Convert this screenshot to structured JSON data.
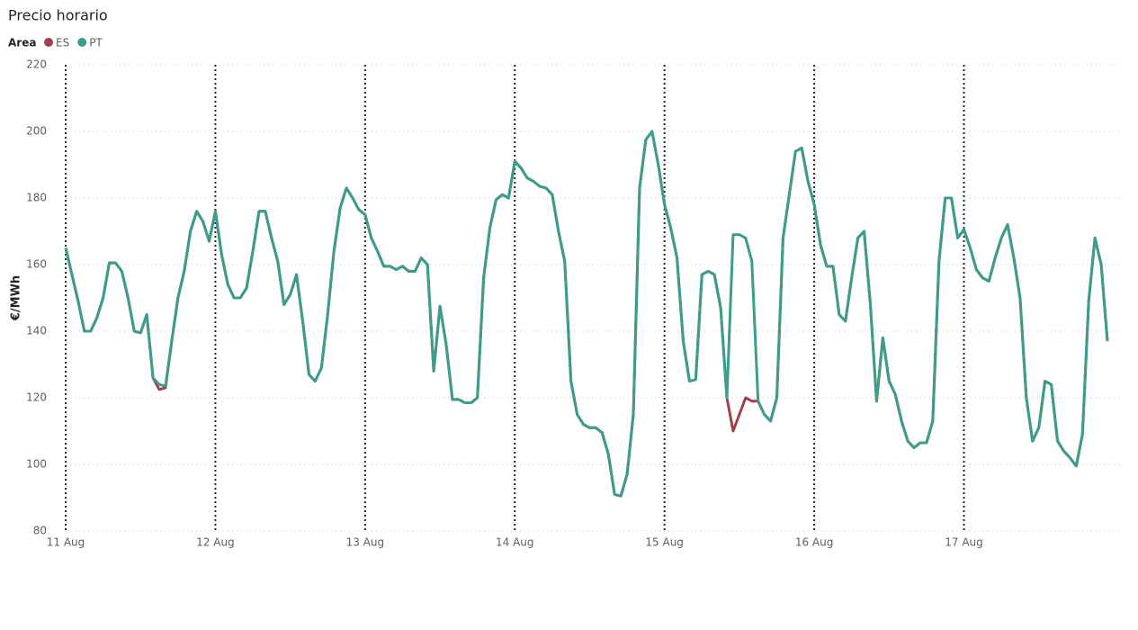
{
  "chart_data": {
    "type": "line",
    "title": "Precio horario",
    "legend_title": "Area",
    "y_label": "€/MWh",
    "categories": [
      "11 Aug",
      null,
      null,
      null,
      null,
      null,
      null,
      null,
      null,
      null,
      null,
      null,
      null,
      null,
      null,
      null,
      null,
      null,
      null,
      null,
      null,
      null,
      null,
      null,
      "12 Aug",
      null,
      null,
      null,
      null,
      null,
      null,
      null,
      null,
      null,
      null,
      null,
      null,
      null,
      null,
      null,
      null,
      null,
      null,
      null,
      null,
      null,
      null,
      null,
      "13 Aug",
      null,
      null,
      null,
      null,
      null,
      null,
      null,
      null,
      null,
      null,
      null,
      null,
      null,
      null,
      null,
      null,
      null,
      null,
      null,
      null,
      null,
      null,
      null,
      "14 Aug",
      null,
      null,
      null,
      null,
      null,
      null,
      null,
      null,
      null,
      null,
      null,
      null,
      null,
      null,
      null,
      null,
      null,
      null,
      null,
      null,
      null,
      null,
      null,
      "15 Aug",
      null,
      null,
      null,
      null,
      null,
      null,
      null,
      null,
      null,
      null,
      null,
      null,
      null,
      null,
      null,
      null,
      null,
      null,
      null,
      null,
      null,
      null,
      null,
      "16 Aug",
      null,
      null,
      null,
      null,
      null,
      null,
      null,
      null,
      null,
      null,
      null,
      null,
      null,
      null,
      null,
      null,
      null,
      null,
      null,
      null,
      null,
      null,
      null,
      "17 Aug",
      null,
      null,
      null,
      null,
      null,
      null,
      null,
      null,
      null,
      null,
      null,
      null,
      null,
      null,
      null,
      null,
      null,
      null,
      null,
      null,
      null,
      null,
      null
    ],
    "series": [
      {
        "name": "ES",
        "color": "#a0404f",
        "values": [
          165,
          157,
          149,
          140,
          140,
          144,
          150,
          160.5,
          160.5,
          158,
          150,
          140,
          139.5,
          145,
          126,
          122.5,
          123,
          137,
          150,
          158,
          170,
          176,
          173,
          167,
          176,
          163,
          154,
          150,
          150,
          153,
          164,
          176,
          176,
          168,
          161,
          148,
          151,
          157,
          143,
          127,
          125,
          129,
          145,
          164,
          177,
          183,
          180,
          176.5,
          175,
          168,
          164,
          159.5,
          159.5,
          158.5,
          159.5,
          158,
          158,
          162,
          160,
          128,
          147.5,
          136,
          119.5,
          119.5,
          118.5,
          118.5,
          120,
          156,
          171,
          179.5,
          181,
          180,
          191,
          189,
          186,
          185,
          183.5,
          183,
          181,
          170,
          161,
          125,
          115,
          112,
          111,
          111,
          109.5,
          103,
          91,
          90.5,
          97,
          115,
          183,
          197.5,
          200,
          190,
          178,
          171,
          162,
          137,
          125,
          125.5,
          157,
          158,
          157,
          147,
          120,
          110,
          115,
          120,
          119,
          119,
          115,
          113,
          120,
          168,
          181,
          194,
          195,
          185,
          178,
          166,
          159.5,
          159.5,
          145,
          143,
          156,
          168,
          170,
          148,
          119,
          138,
          125,
          121,
          113,
          107,
          105,
          106.5,
          106.5,
          113,
          161,
          180,
          180,
          168,
          170.5,
          165,
          158.5,
          156,
          155,
          162,
          168,
          172,
          162,
          150,
          120,
          107,
          111,
          125,
          124,
          107,
          104,
          102,
          99.5,
          109,
          149,
          168,
          160,
          137
        ]
      },
      {
        "name": "PT",
        "color": "#3a9e8b",
        "values": [
          165,
          157,
          149,
          140,
          140,
          144,
          150,
          160.5,
          160.5,
          158,
          150,
          140,
          139.5,
          145,
          126,
          124,
          123.5,
          137,
          150,
          158,
          170,
          176,
          173,
          167,
          176,
          163,
          154,
          150,
          150,
          153,
          164,
          176,
          176,
          168,
          161,
          148,
          151,
          157,
          143,
          127,
          125,
          129,
          145,
          164,
          177,
          183,
          180,
          176.5,
          175,
          168,
          164,
          159.5,
          159.5,
          158.5,
          159.5,
          158,
          158,
          162,
          160,
          128,
          147.5,
          136,
          119.5,
          119.5,
          118.5,
          118.5,
          120,
          156,
          171,
          179.5,
          181,
          180,
          191,
          189,
          186,
          185,
          183.5,
          183,
          181,
          170,
          161,
          125,
          115,
          112,
          111,
          111,
          109.5,
          103,
          91,
          90.5,
          97,
          115,
          183,
          197.5,
          200,
          190,
          178,
          171,
          162,
          137,
          125,
          125.5,
          157,
          158,
          157,
          147,
          120,
          169,
          169,
          168,
          161,
          119,
          115,
          113,
          120,
          168,
          181,
          194,
          195,
          185,
          178,
          166,
          159.5,
          159.5,
          145,
          143,
          156,
          168,
          170,
          148,
          119,
          138,
          125,
          121,
          113,
          107,
          105,
          106.5,
          106.5,
          113,
          161,
          180,
          180,
          168,
          170.5,
          165,
          158.5,
          156,
          155,
          162,
          168,
          172,
          162,
          150,
          120,
          107,
          111,
          125,
          124,
          107,
          104,
          102,
          99.5,
          109,
          149,
          168,
          160,
          137
        ]
      }
    ],
    "ylim": [
      80,
      220
    ],
    "yticks": [
      80,
      100,
      120,
      140,
      160,
      180,
      200,
      220
    ],
    "grid": true
  }
}
